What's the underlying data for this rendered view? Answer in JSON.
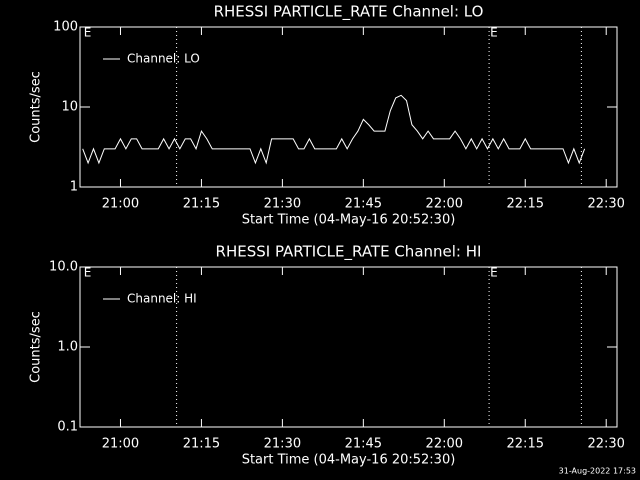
{
  "chart_data": [
    {
      "type": "line",
      "title": "RHESSI PARTICLE_RATE Channel: LO",
      "xlabel": "Start Time (04-May-16 20:52:30)",
      "ylabel": "Counts/sec",
      "xlim": [
        1252.5,
        1352
      ],
      "xticks": [
        {
          "value": 1260,
          "label": "21:00"
        },
        {
          "value": 1275,
          "label": "21:15"
        },
        {
          "value": 1290,
          "label": "21:30"
        },
        {
          "value": 1305,
          "label": "21:45"
        },
        {
          "value": 1320,
          "label": "22:00"
        },
        {
          "value": 1335,
          "label": "22:15"
        },
        {
          "value": 1350,
          "label": "22:30"
        }
      ],
      "ylim": [
        1,
        100
      ],
      "yticks": [
        1,
        10,
        100
      ],
      "log_y": true,
      "legend": "upper left",
      "vlines": [
        1270.4,
        1328.3,
        1345.4
      ],
      "annotations": [
        {
          "x": 1253,
          "text": "E"
        },
        {
          "x": 1328.3,
          "text": "E"
        }
      ],
      "series": [
        {
          "name": "Channel: LO",
          "color": "#ffffff",
          "x": [
            1253,
            1254,
            1255,
            1256,
            1257,
            1258,
            1259,
            1260,
            1261,
            1262,
            1263,
            1264,
            1265,
            1266,
            1267,
            1268,
            1269,
            1270,
            1271,
            1272,
            1273,
            1274,
            1275,
            1276,
            1277,
            1278,
            1279,
            1280,
            1281,
            1282,
            1283,
            1284,
            1285,
            1286,
            1287,
            1288,
            1289,
            1290,
            1291,
            1292,
            1293,
            1294,
            1295,
            1296,
            1297,
            1298,
            1299,
            1300,
            1301,
            1302,
            1303,
            1304,
            1305,
            1306,
            1307,
            1308,
            1309,
            1310,
            1311,
            1312,
            1313,
            1314,
            1315,
            1316,
            1317,
            1318,
            1319,
            1320,
            1321,
            1322,
            1323,
            1324,
            1325,
            1326,
            1327,
            1328,
            1329,
            1330,
            1331,
            1332,
            1333,
            1334,
            1335,
            1336,
            1337,
            1338,
            1339,
            1340,
            1341,
            1342,
            1343,
            1344,
            1345,
            1346
          ],
          "values": [
            3,
            2,
            3,
            2,
            3,
            3,
            3,
            4,
            3,
            4,
            4,
            3,
            3,
            3,
            3,
            4,
            3,
            4,
            3,
            4,
            4,
            3,
            5,
            4,
            3,
            3,
            3,
            3,
            3,
            3,
            3,
            3,
            2,
            3,
            2,
            4,
            4,
            4,
            4,
            4,
            3,
            3,
            4,
            3,
            3,
            3,
            3,
            3,
            4,
            3,
            4,
            5,
            7,
            6,
            5,
            5,
            5,
            9,
            13,
            14,
            12,
            6,
            5,
            4,
            5,
            4,
            4,
            4,
            4,
            5,
            4,
            3,
            4,
            3,
            4,
            3,
            4,
            3,
            4,
            3,
            3,
            3,
            4,
            3,
            3,
            3,
            3,
            3,
            3,
            3,
            2,
            3,
            2,
            3
          ]
        }
      ]
    },
    {
      "type": "line",
      "title": "RHESSI PARTICLE_RATE Channel: HI",
      "xlabel": "Start Time (04-May-16 20:52:30)",
      "ylabel": "Counts/sec",
      "xlim": [
        1252.5,
        1352
      ],
      "xticks": [
        {
          "value": 1260,
          "label": "21:00"
        },
        {
          "value": 1275,
          "label": "21:15"
        },
        {
          "value": 1290,
          "label": "21:30"
        },
        {
          "value": 1305,
          "label": "21:45"
        },
        {
          "value": 1320,
          "label": "22:00"
        },
        {
          "value": 1335,
          "label": "22:15"
        },
        {
          "value": 1350,
          "label": "22:30"
        }
      ],
      "ylim": [
        0.1,
        10
      ],
      "yticks": [
        0.1,
        {
          "value": 1,
          "label": "1.0"
        },
        {
          "value": 10,
          "label": "10.0"
        }
      ],
      "log_y": true,
      "legend": "upper left",
      "vlines": [
        1270.4,
        1328.3,
        1345.4
      ],
      "annotations": [
        {
          "x": 1253,
          "text": "E"
        },
        {
          "x": 1328.3,
          "text": "E"
        }
      ],
      "series": [
        {
          "name": "Channel: HI",
          "color": "#ffffff",
          "x": [],
          "values": []
        }
      ]
    }
  ],
  "footer": "31-Aug-2022 17:53"
}
